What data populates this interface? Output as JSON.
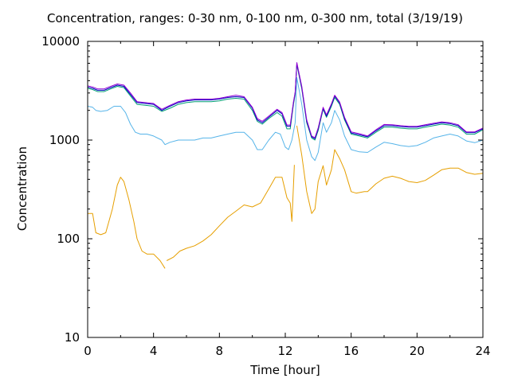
{
  "chart_data": {
    "type": "line",
    "title": "Concentration, ranges: 0-30 nm, 0-100 nm, 0-300 nm, total (3/19/19)",
    "xlabel": "Time [hour]",
    "ylabel": "Concentration",
    "xlim": [
      0,
      24
    ],
    "ylim": [
      10,
      10000
    ],
    "yscale": "log",
    "xticks": [
      "0",
      "4",
      "8",
      "12",
      "16",
      "20",
      "24"
    ],
    "yticks": [
      "10",
      "100",
      "1000",
      "10000"
    ],
    "grid": false,
    "series": [
      {
        "color": "#e69f00",
        "points": [
          [
            0,
            180
          ],
          [
            0.3,
            180
          ],
          [
            0.5,
            115
          ],
          [
            0.8,
            110
          ],
          [
            1.1,
            115
          ],
          [
            1.5,
            200
          ],
          [
            1.8,
            350
          ],
          [
            2.0,
            420
          ],
          [
            2.2,
            380
          ],
          [
            2.5,
            250
          ],
          [
            2.8,
            150
          ],
          [
            3.0,
            100
          ],
          [
            3.3,
            75
          ],
          [
            3.6,
            70
          ],
          [
            4.0,
            70
          ],
          [
            4.4,
            60
          ],
          [
            4.7,
            50
          ],
          null,
          [
            4.8,
            60
          ],
          [
            5.2,
            65
          ],
          [
            5.6,
            75
          ],
          [
            6.0,
            80
          ],
          [
            6.5,
            85
          ],
          [
            7.0,
            95
          ],
          [
            7.5,
            110
          ],
          [
            8.0,
            135
          ],
          [
            8.5,
            165
          ],
          [
            9.0,
            190
          ],
          [
            9.5,
            220
          ],
          [
            10.0,
            210
          ],
          [
            10.5,
            230
          ],
          [
            11.0,
            320
          ],
          [
            11.4,
            420
          ],
          [
            11.8,
            420
          ],
          [
            12.1,
            260
          ],
          [
            12.3,
            230
          ],
          [
            12.4,
            150
          ],
          [
            12.5,
            350
          ],
          [
            12.55,
            560
          ],
          null,
          [
            12.7,
            1400
          ],
          [
            13.0,
            700
          ],
          [
            13.3,
            300
          ],
          [
            13.6,
            180
          ],
          [
            13.8,
            200
          ],
          [
            14.0,
            380
          ],
          [
            14.3,
            550
          ],
          [
            14.5,
            350
          ],
          [
            14.8,
            500
          ],
          [
            15.0,
            800
          ],
          [
            15.3,
            650
          ],
          [
            15.6,
            500
          ],
          [
            16.0,
            300
          ],
          [
            16.3,
            290
          ],
          [
            16.8,
            300
          ],
          [
            17.0,
            300
          ],
          [
            17.5,
            360
          ],
          [
            18.0,
            410
          ],
          [
            18.5,
            430
          ],
          [
            19.0,
            410
          ],
          [
            19.5,
            380
          ],
          [
            20.0,
            370
          ],
          [
            20.5,
            390
          ],
          [
            21.0,
            440
          ],
          [
            21.5,
            500
          ],
          [
            22.0,
            520
          ],
          [
            22.5,
            520
          ],
          [
            23.0,
            470
          ],
          [
            23.5,
            450
          ],
          [
            24.0,
            460
          ]
        ]
      },
      {
        "color": "#56b4e9",
        "points": [
          [
            0,
            2200
          ],
          [
            0.3,
            2150
          ],
          [
            0.5,
            2000
          ],
          [
            0.8,
            1950
          ],
          [
            1.2,
            2000
          ],
          [
            1.6,
            2200
          ],
          [
            2.0,
            2200
          ],
          [
            2.3,
            1900
          ],
          [
            2.6,
            1450
          ],
          [
            2.9,
            1200
          ],
          [
            3.2,
            1150
          ],
          [
            3.6,
            1150
          ],
          [
            4.0,
            1100
          ],
          [
            4.5,
            1000
          ],
          [
            4.7,
            900
          ],
          [
            5.0,
            950
          ],
          [
            5.5,
            1000
          ],
          [
            6.0,
            1000
          ],
          [
            6.5,
            1000
          ],
          [
            7.0,
            1050
          ],
          [
            7.5,
            1050
          ],
          [
            8.0,
            1100
          ],
          [
            8.5,
            1150
          ],
          [
            9.0,
            1200
          ],
          [
            9.5,
            1200
          ],
          [
            10.0,
            1000
          ],
          [
            10.3,
            800
          ],
          [
            10.6,
            800
          ],
          [
            11.0,
            1000
          ],
          [
            11.4,
            1200
          ],
          [
            11.7,
            1150
          ],
          [
            12.0,
            850
          ],
          [
            12.2,
            800
          ],
          [
            12.4,
            1000
          ],
          [
            12.6,
            1500
          ],
          [
            12.7,
            4300
          ],
          [
            13.0,
            2300
          ],
          [
            13.3,
            1000
          ],
          [
            13.6,
            680
          ],
          [
            13.8,
            620
          ],
          [
            14.0,
            750
          ],
          [
            14.3,
            1500
          ],
          [
            14.5,
            1200
          ],
          [
            14.8,
            1500
          ],
          [
            15.0,
            2000
          ],
          [
            15.3,
            1600
          ],
          [
            15.6,
            1100
          ],
          [
            16.0,
            800
          ],
          [
            16.5,
            760
          ],
          [
            17.0,
            750
          ],
          [
            17.5,
            850
          ],
          [
            18.0,
            950
          ],
          [
            18.5,
            920
          ],
          [
            19.0,
            880
          ],
          [
            19.5,
            860
          ],
          [
            20.0,
            880
          ],
          [
            20.5,
            950
          ],
          [
            21.0,
            1050
          ],
          [
            21.5,
            1100
          ],
          [
            22.0,
            1150
          ],
          [
            22.5,
            1100
          ],
          [
            23.0,
            980
          ],
          [
            23.5,
            940
          ],
          [
            24.0,
            1000
          ]
        ]
      },
      {
        "color": "#009e73",
        "points": [
          [
            0,
            3350
          ],
          [
            0.3,
            3250
          ],
          [
            0.6,
            3100
          ],
          [
            1.0,
            3100
          ],
          [
            1.4,
            3300
          ],
          [
            1.8,
            3500
          ],
          [
            2.2,
            3400
          ],
          [
            2.6,
            2800
          ],
          [
            3.0,
            2300
          ],
          [
            3.5,
            2250
          ],
          [
            4.0,
            2200
          ],
          [
            4.5,
            1950
          ],
          [
            5.0,
            2100
          ],
          [
            5.5,
            2300
          ],
          [
            6.0,
            2400
          ],
          [
            6.5,
            2450
          ],
          [
            7.0,
            2450
          ],
          [
            7.5,
            2450
          ],
          [
            8.0,
            2500
          ],
          [
            8.5,
            2600
          ],
          [
            9.0,
            2650
          ],
          [
            9.5,
            2600
          ],
          [
            10.0,
            2000
          ],
          [
            10.3,
            1550
          ],
          [
            10.6,
            1450
          ],
          [
            11.0,
            1650
          ],
          [
            11.5,
            1900
          ],
          [
            11.8,
            1750
          ],
          [
            12.1,
            1300
          ],
          [
            12.3,
            1300
          ],
          [
            12.5,
            2300
          ],
          [
            12.6,
            2900
          ],
          [
            12.7,
            5800
          ],
          [
            13.0,
            3300
          ],
          [
            13.3,
            1500
          ],
          [
            13.6,
            1050
          ],
          [
            13.8,
            1000
          ],
          [
            14.0,
            1250
          ],
          [
            14.3,
            2050
          ],
          [
            14.5,
            1700
          ],
          [
            14.8,
            2200
          ],
          [
            15.0,
            2700
          ],
          [
            15.3,
            2300
          ],
          [
            15.6,
            1600
          ],
          [
            16.0,
            1150
          ],
          [
            16.5,
            1100
          ],
          [
            17.0,
            1050
          ],
          [
            17.5,
            1200
          ],
          [
            18.0,
            1350
          ],
          [
            18.5,
            1350
          ],
          [
            19.0,
            1320
          ],
          [
            19.5,
            1300
          ],
          [
            20.0,
            1300
          ],
          [
            20.5,
            1350
          ],
          [
            21.0,
            1400
          ],
          [
            21.5,
            1450
          ],
          [
            22.0,
            1420
          ],
          [
            22.5,
            1350
          ],
          [
            23.0,
            1150
          ],
          [
            23.5,
            1150
          ],
          [
            24.0,
            1270
          ]
        ]
      },
      {
        "color": "#0000c0",
        "points": [
          [
            0,
            3450
          ],
          [
            0.3,
            3350
          ],
          [
            0.6,
            3200
          ],
          [
            1.0,
            3200
          ],
          [
            1.4,
            3400
          ],
          [
            1.8,
            3600
          ],
          [
            2.2,
            3500
          ],
          [
            2.6,
            2900
          ],
          [
            3.0,
            2400
          ],
          [
            3.5,
            2350
          ],
          [
            4.0,
            2300
          ],
          [
            4.5,
            2000
          ],
          [
            5.0,
            2200
          ],
          [
            5.5,
            2400
          ],
          [
            6.0,
            2500
          ],
          [
            6.5,
            2550
          ],
          [
            7.0,
            2550
          ],
          [
            7.5,
            2550
          ],
          [
            8.0,
            2600
          ],
          [
            8.5,
            2700
          ],
          [
            9.0,
            2750
          ],
          [
            9.5,
            2700
          ],
          [
            10.0,
            2100
          ],
          [
            10.3,
            1600
          ],
          [
            10.6,
            1500
          ],
          [
            11.0,
            1700
          ],
          [
            11.5,
            2000
          ],
          [
            11.8,
            1850
          ],
          [
            12.1,
            1380
          ],
          [
            12.3,
            1380
          ],
          [
            12.5,
            2400
          ],
          [
            12.6,
            3000
          ],
          [
            12.7,
            6000
          ],
          [
            13.0,
            3400
          ],
          [
            13.3,
            1550
          ],
          [
            13.6,
            1080
          ],
          [
            13.8,
            1030
          ],
          [
            14.0,
            1300
          ],
          [
            14.3,
            2100
          ],
          [
            14.5,
            1750
          ],
          [
            14.8,
            2280
          ],
          [
            15.0,
            2800
          ],
          [
            15.3,
            2380
          ],
          [
            15.6,
            1650
          ],
          [
            16.0,
            1180
          ],
          [
            16.5,
            1130
          ],
          [
            17.0,
            1080
          ],
          [
            17.5,
            1240
          ],
          [
            18.0,
            1400
          ],
          [
            18.5,
            1400
          ],
          [
            19.0,
            1370
          ],
          [
            19.5,
            1350
          ],
          [
            20.0,
            1350
          ],
          [
            20.5,
            1400
          ],
          [
            21.0,
            1450
          ],
          [
            21.5,
            1500
          ],
          [
            22.0,
            1470
          ],
          [
            22.5,
            1400
          ],
          [
            23.0,
            1190
          ],
          [
            23.5,
            1190
          ],
          [
            24.0,
            1300
          ]
        ]
      },
      {
        "color": "#9400d3",
        "points": [
          [
            0,
            3550
          ],
          [
            0.3,
            3450
          ],
          [
            0.6,
            3300
          ],
          [
            1.0,
            3300
          ],
          [
            1.4,
            3500
          ],
          [
            1.8,
            3700
          ],
          [
            2.2,
            3600
          ],
          [
            2.6,
            3000
          ],
          [
            3.0,
            2450
          ],
          [
            3.5,
            2400
          ],
          [
            4.0,
            2350
          ],
          [
            4.5,
            2050
          ],
          [
            5.0,
            2250
          ],
          [
            5.5,
            2450
          ],
          [
            6.0,
            2550
          ],
          [
            6.5,
            2600
          ],
          [
            7.0,
            2600
          ],
          [
            7.5,
            2600
          ],
          [
            8.0,
            2650
          ],
          [
            8.5,
            2750
          ],
          [
            9.0,
            2850
          ],
          [
            9.5,
            2750
          ],
          [
            10.0,
            2150
          ],
          [
            10.3,
            1650
          ],
          [
            10.6,
            1550
          ],
          [
            11.0,
            1750
          ],
          [
            11.5,
            2050
          ],
          [
            11.8,
            1900
          ],
          [
            12.1,
            1420
          ],
          [
            12.3,
            1420
          ],
          [
            12.5,
            2450
          ],
          [
            12.6,
            3050
          ],
          [
            12.7,
            6100
          ],
          [
            13.0,
            3500
          ],
          [
            13.3,
            1600
          ],
          [
            13.6,
            1100
          ],
          [
            13.8,
            1060
          ],
          [
            14.0,
            1330
          ],
          [
            14.3,
            2150
          ],
          [
            14.5,
            1800
          ],
          [
            14.8,
            2330
          ],
          [
            15.0,
            2850
          ],
          [
            15.3,
            2430
          ],
          [
            15.6,
            1700
          ],
          [
            16.0,
            1210
          ],
          [
            16.5,
            1160
          ],
          [
            17.0,
            1100
          ],
          [
            17.5,
            1270
          ],
          [
            18.0,
            1440
          ],
          [
            18.5,
            1430
          ],
          [
            19.0,
            1400
          ],
          [
            19.5,
            1380
          ],
          [
            20.0,
            1380
          ],
          [
            20.5,
            1430
          ],
          [
            21.0,
            1480
          ],
          [
            21.5,
            1530
          ],
          [
            22.0,
            1500
          ],
          [
            22.5,
            1430
          ],
          [
            23.0,
            1210
          ],
          [
            23.5,
            1210
          ],
          [
            24.0,
            1320
          ]
        ]
      }
    ]
  }
}
